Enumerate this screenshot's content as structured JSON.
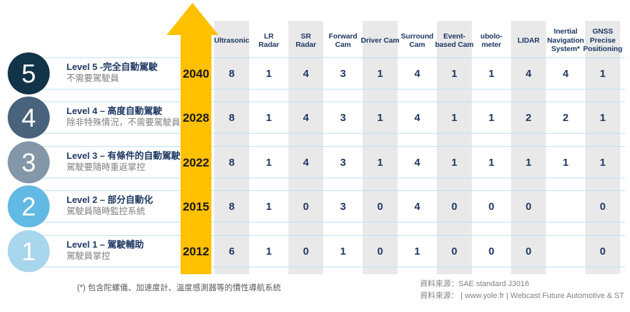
{
  "chart_data": {
    "type": "table",
    "description": "Sensor count per autonomous driving level (SAE levels 1-5) by year",
    "columns": [
      {
        "name": "Ultrasonic",
        "display": "Ultrasonic"
      },
      {
        "name": "LR Radar",
        "display": "LR\nRadar"
      },
      {
        "name": "SR Radar",
        "display": "SR\nRadar"
      },
      {
        "name": "Forward Cam",
        "display": "Forward\nCam"
      },
      {
        "name": "Driver Cam",
        "display": "Driver Cam"
      },
      {
        "name": "Surround Cam",
        "display": "Surround\nCam"
      },
      {
        "name": "Event-based Cam",
        "display": "Event-\nbased Cam"
      },
      {
        "name": "ubolo-meter",
        "display": "ubolo-\nmeter"
      },
      {
        "name": "LIDAR",
        "display": "LIDAR"
      },
      {
        "name": "Inertial Navigation System*",
        "display": "Inertial\nNavigation\nSystem*"
      },
      {
        "name": "GNSS Precise Positioning",
        "display": "GNSS\nPrecise\nPositioning"
      }
    ],
    "rows": [
      {
        "level": "5",
        "title": "Level 5 -完全自動駕駛",
        "subtitle": "不需要駕駛員",
        "year": "2040",
        "values": [
          "8",
          "1",
          "4",
          "3",
          "1",
          "4",
          "1",
          "1",
          "4",
          "4",
          "1"
        ],
        "circle_color": "#123449"
      },
      {
        "level": "4",
        "title": "Level 4 – 高度自動駕駛",
        "subtitle": "除非特殊情況，不需要駕駛員",
        "year": "2028",
        "values": [
          "8",
          "1",
          "4",
          "3",
          "1",
          "4",
          "1",
          "1",
          "2",
          "2",
          "1"
        ],
        "circle_color": "#48637b"
      },
      {
        "level": "3",
        "title": "Level 3 – 有條件的自動駕駛",
        "subtitle": "駕駛要隨時重返掌控",
        "year": "2022",
        "values": [
          "8",
          "1",
          "4",
          "3",
          "1",
          "4",
          "1",
          "1",
          "1",
          "1",
          "1"
        ],
        "circle_color": "#8497a9"
      },
      {
        "level": "2",
        "title": "Level 2 – 部分自動化",
        "subtitle": "駕駛員隨時監控系統",
        "year": "2015",
        "values": [
          "8",
          "1",
          "0",
          "3",
          "0",
          "4",
          "0",
          "0",
          "0",
          "",
          "0"
        ],
        "circle_color": "#62b9e3"
      },
      {
        "level": "1",
        "title": "Level 1 – 駕駛輔助",
        "subtitle": "駕駛員掌控",
        "year": "2012",
        "values": [
          "6",
          "1",
          "0",
          "1",
          "0",
          "1",
          "0",
          "0",
          "0",
          "",
          "0"
        ],
        "circle_color": "#a8d6ec"
      }
    ]
  },
  "footnote": "(*) 包含陀螺儀、加速度計、溫度感測器等的慣性導航系統",
  "sources": [
    "資料來源：SAE standard J3016",
    "資料來源： | www.yole.fr | Webcast Future Automotive & ST"
  ],
  "colors": {
    "arrow": "#ffc000",
    "column_band": "#e9e9e9",
    "row_line": "#bfe3f2",
    "header_text": "#1f3864",
    "value_text": "#1f3864",
    "title_text": "#1f3864",
    "subtitle_text": "#7f7f7f"
  }
}
